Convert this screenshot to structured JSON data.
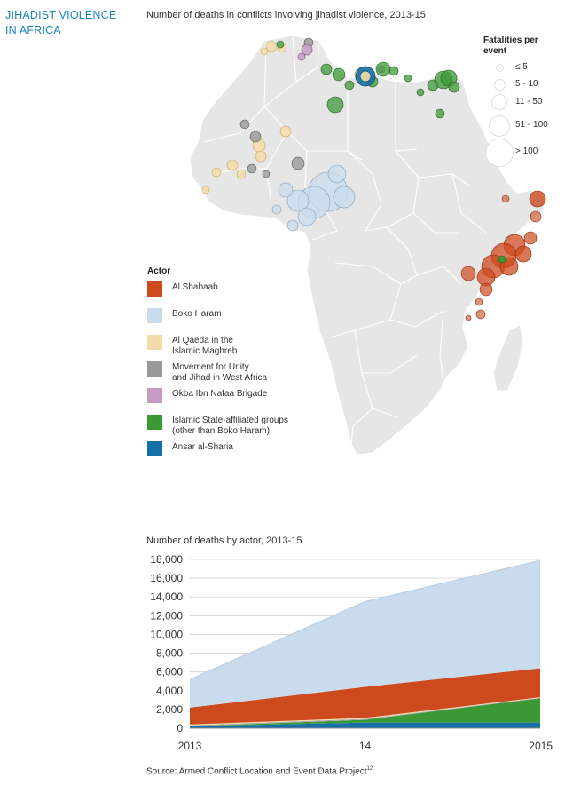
{
  "header": {
    "side_title_line1": "JIHADIST VIOLENCE",
    "side_title_line2": "IN AFRICA",
    "map_title": "Number of deaths in conflicts involving jihadist violence, 2013-15"
  },
  "fatalities_legend": {
    "title_line1": "Fatalities per",
    "title_line2": "event",
    "items": [
      "≤ 5",
      "5 - 10",
      "11 - 50",
      "51 - 100",
      "> 100"
    ]
  },
  "actor_legend": {
    "title": "Actor",
    "items": [
      {
        "label": "Al Shabaab",
        "color": "#cc4a1e"
      },
      {
        "label": "Boko Haram",
        "color": "#c9dced"
      },
      {
        "label": "Al Qaeda in the\nIslamic Maghreb",
        "color": "#f3dca8"
      },
      {
        "label": "Movement for Unity\nand Jihad in West Africa",
        "color": "#999999"
      },
      {
        "label": "Okba Ibn Nafaa Brigade",
        "color": "#c39bc3"
      },
      {
        "label": "Islamic State-affiliated groups\n(other than Boko Haram)",
        "color": "#3c9a36"
      },
      {
        "label": "Ansar al-Sharia",
        "color": "#1670a7"
      }
    ]
  },
  "chart_data": {
    "type": "area",
    "title": "Number of deaths by actor, 2013-15",
    "x": [
      "2013",
      "14",
      "2015"
    ],
    "ylim": [
      0,
      18000
    ],
    "yticks": [
      "0",
      "2,000",
      "4,000",
      "6,000",
      "8,000",
      "10,000",
      "12,000",
      "14,000",
      "16,000",
      "18,000"
    ],
    "stacked": true,
    "series": [
      {
        "name": "Ansar al-Sharia",
        "color": "#1670a7",
        "values": [
          200,
          600,
          600
        ]
      },
      {
        "name": "Islamic State-affiliated groups (other than Boko Haram)",
        "color": "#3c9a36",
        "values": [
          0,
          300,
          2600
        ]
      },
      {
        "name": "Okba Ibn Nafaa Brigade",
        "color": "#c39bc3",
        "values": [
          0,
          50,
          50
        ]
      },
      {
        "name": "Movement for Unity and Jihad in West Africa",
        "color": "#999999",
        "values": [
          100,
          50,
          0
        ]
      },
      {
        "name": "Al Qaeda in the Islamic Maghreb",
        "color": "#f3dca8",
        "values": [
          100,
          100,
          50
        ]
      },
      {
        "name": "Al Shabaab",
        "color": "#cc4a1e",
        "values": [
          1800,
          3300,
          3100
        ]
      },
      {
        "name": "Boko Haram",
        "color": "#c9dced",
        "values": [
          3000,
          9100,
          11500
        ]
      }
    ]
  },
  "source": {
    "text": "Source: Armed Conflict Location and Event Data Project",
    "superscript": "12"
  }
}
